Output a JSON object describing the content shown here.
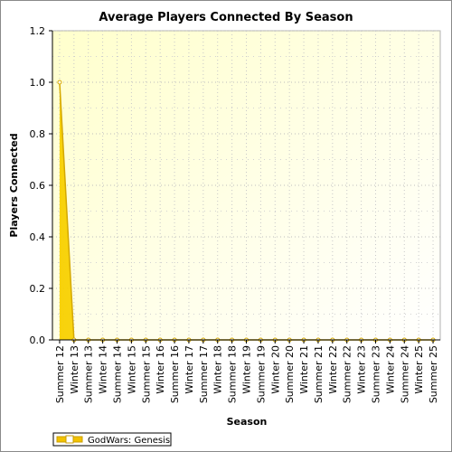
{
  "chart_data": {
    "type": "area",
    "title": "Average Players Connected By Season",
    "xlabel": "Season",
    "ylabel": "Players Connected",
    "ylim": [
      0,
      1.2
    ],
    "yticks": [
      "0.0",
      "0.2",
      "0.4",
      "0.6",
      "0.8",
      "1.0",
      "1.2"
    ],
    "grid": true,
    "legend_position": "bottom-left",
    "categories": [
      "Summer 12",
      "Winter 13",
      "Summer 13",
      "Winter 14",
      "Summer 14",
      "Winter 15",
      "Summer 15",
      "Winter 16",
      "Summer 16",
      "Winter 17",
      "Summer 17",
      "Winter 18",
      "Summer 18",
      "Winter 19",
      "Summer 19",
      "Winter 20",
      "Summer 20",
      "Winter 21",
      "Summer 21",
      "Winter 22",
      "Summer 22",
      "Winter 23",
      "Summer 23",
      "Winter 24",
      "Summer 24",
      "Winter 25",
      "Summer 25"
    ],
    "series": [
      {
        "name": "GodWars: Genesis",
        "color": "#f2c200",
        "values": [
          1.0,
          0.0,
          0.0,
          0.0,
          0.0,
          0.0,
          0.0,
          0.0,
          0.0,
          0.0,
          0.0,
          0.0,
          0.0,
          0.0,
          0.0,
          0.0,
          0.0,
          0.0,
          0.0,
          0.0,
          0.0,
          0.0,
          0.0,
          0.0,
          0.0,
          0.0,
          0.0
        ]
      }
    ]
  }
}
